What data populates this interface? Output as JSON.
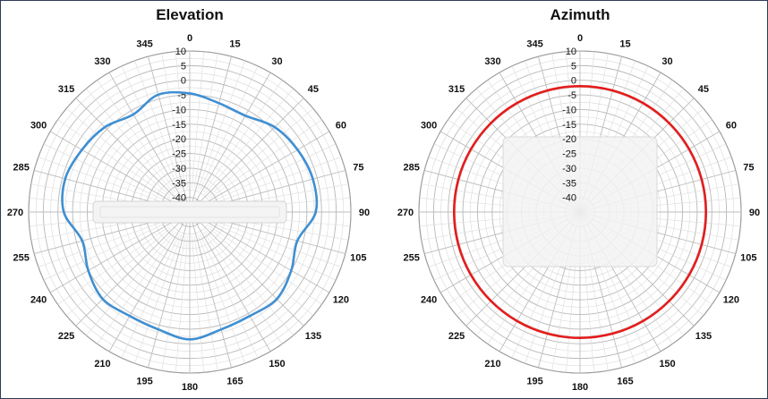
{
  "chart_data": [
    {
      "type": "polar-line",
      "title": "Elevation",
      "angular_ticks": [
        "0",
        "15",
        "30",
        "45",
        "60",
        "75",
        "90",
        "105",
        "120",
        "135",
        "150",
        "165",
        "180",
        "195",
        "210",
        "225",
        "240",
        "255",
        "270",
        "285",
        "300",
        "315",
        "330",
        "345"
      ],
      "radial_ticks": [
        10,
        5,
        0,
        -5,
        -10,
        -15,
        -20,
        -25,
        -30,
        -35,
        -40
      ],
      "rlim": [
        -45,
        10
      ],
      "grid": true,
      "series": [
        {
          "color": "#3f8fd2",
          "theta": [
            0,
            15,
            30,
            45,
            60,
            75,
            90,
            105,
            120,
            135,
            150,
            165,
            180,
            195,
            210,
            225,
            240,
            255,
            270,
            285,
            300,
            315,
            330,
            345
          ],
          "r": [
            -4.5,
            -6.5,
            -7,
            -4,
            -2.5,
            -1.5,
            -2,
            -7,
            -5,
            -3,
            -4,
            -3.5,
            -1.5,
            -3.5,
            -4,
            -3,
            -5,
            -7,
            -2,
            -1,
            -2.5,
            -4,
            -6.5,
            -3.5
          ]
        }
      ]
    },
    {
      "type": "polar-line",
      "title": "Azimuth",
      "angular_ticks": [
        "0",
        "15",
        "30",
        "45",
        "60",
        "75",
        "90",
        "105",
        "120",
        "135",
        "150",
        "165",
        "180",
        "195",
        "210",
        "225",
        "240",
        "255",
        "270",
        "285",
        "300",
        "315",
        "330",
        "345"
      ],
      "radial_ticks": [
        10,
        5,
        0,
        -5,
        -10,
        -15,
        -20,
        -25,
        -30,
        -35,
        -40
      ],
      "rlim": [
        -45,
        10
      ],
      "grid": true,
      "series": [
        {
          "color": "#e41b1b",
          "theta": [
            0,
            15,
            30,
            45,
            60,
            75,
            90,
            105,
            120,
            135,
            150,
            165,
            180,
            195,
            210,
            225,
            240,
            255,
            270,
            285,
            300,
            315,
            330,
            345
          ],
          "r": [
            -2,
            -2,
            -2,
            -2,
            -2,
            -2,
            -2,
            -2,
            -2,
            -2,
            -2,
            -2,
            -2,
            -2,
            -2,
            -2,
            -2,
            -2,
            -2,
            -2,
            -2,
            -2,
            -2,
            -2
          ]
        }
      ]
    }
  ]
}
